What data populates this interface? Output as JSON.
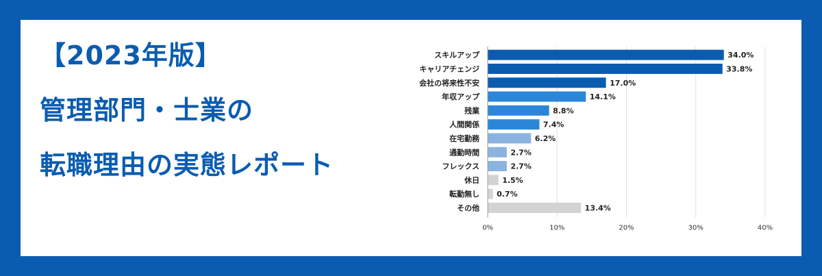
{
  "title": {
    "line1": "【2023年版】",
    "line2": "管理部門・士業の",
    "line3": "転職理由の実態レポート"
  },
  "colors": {
    "background": "#0a5cb0",
    "bar_dark": "#0a5cb0",
    "bar_mid": "#2a86d9",
    "bar_light": "#8bb3e0",
    "bar_gray": "#d3d3d3"
  },
  "chart_data": {
    "type": "bar",
    "orientation": "horizontal",
    "categories": [
      "スキルアップ",
      "キャリアチェンジ",
      "会社の将来性不安",
      "年収アップ",
      "残業",
      "人間関係",
      "在宅勤務",
      "通勤時間",
      "フレックス",
      "休日",
      "転勤無し",
      "その他"
    ],
    "values": [
      34.0,
      33.8,
      17.0,
      14.1,
      8.8,
      7.4,
      6.2,
      2.7,
      2.7,
      1.5,
      0.7,
      13.4
    ],
    "value_labels": [
      "34.0%",
      "33.8%",
      "17.0%",
      "14.1%",
      "8.8%",
      "7.4%",
      "6.2%",
      "2.7%",
      "2.7%",
      "1.5%",
      "0.7%",
      "13.4%"
    ],
    "bar_colors": [
      "#0a5cb0",
      "#0a5cb0",
      "#0a5cb0",
      "#2a86d9",
      "#2a86d9",
      "#2a86d9",
      "#8bb3e0",
      "#8bb3e0",
      "#8bb3e0",
      "#d3d3d3",
      "#d3d3d3",
      "#d3d3d3"
    ],
    "xlim": [
      0,
      40
    ],
    "xticks": [
      0,
      10,
      20,
      30,
      40
    ],
    "xtick_labels": [
      "0%",
      "10%",
      "20%",
      "30%",
      "40%"
    ],
    "grid": true
  }
}
